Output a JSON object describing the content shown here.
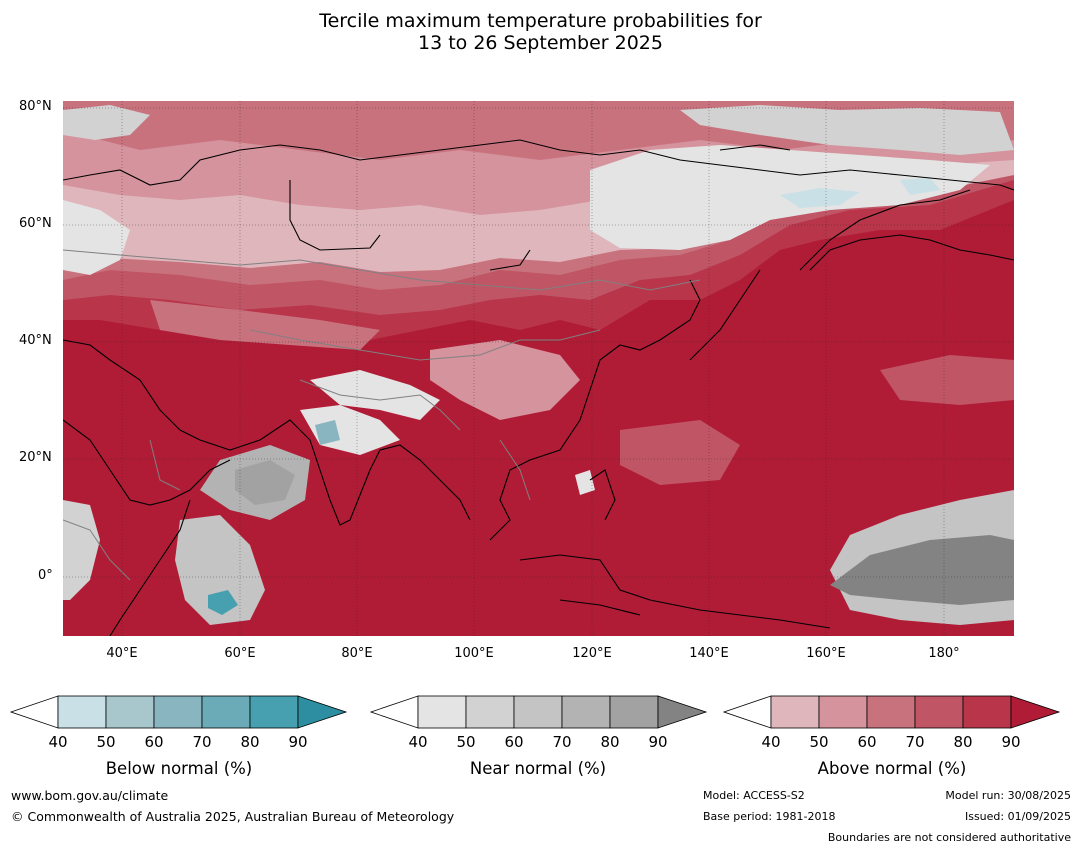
{
  "title_line1": "Tercile maximum temperature probabilities for",
  "title_line2": "13 to 26 September 2025",
  "map": {
    "projection": "equirectangular",
    "lon_range": [
      30,
      192
    ],
    "lat_range": [
      -10,
      81
    ],
    "lat_labels": [
      "80°N",
      "60°N",
      "40°N",
      "20°N",
      "0°"
    ],
    "lon_labels": [
      "40°E",
      "60°E",
      "80°E",
      "100°E",
      "120°E",
      "140°E",
      "160°E",
      "180°"
    ],
    "dominant_category": "Above normal",
    "colors": {
      "land_outline": "#000000",
      "borders": "#808080",
      "grid": "#333333"
    }
  },
  "legends": [
    {
      "name": "Below normal (%)",
      "ticks": [
        "40",
        "50",
        "60",
        "70",
        "80",
        "90"
      ],
      "colors": [
        "#ffffff",
        "#c9e0e7",
        "#a7c7cd",
        "#88b5bf",
        "#6babb7",
        "#46a0b0",
        "#2e8ea1"
      ]
    },
    {
      "name": "Near normal (%)",
      "ticks": [
        "40",
        "50",
        "60",
        "70",
        "80",
        "90"
      ],
      "colors": [
        "#ffffff",
        "#e4e4e4",
        "#d2d2d2",
        "#c4c4c4",
        "#b3b3b3",
        "#a2a2a2",
        "#838383"
      ]
    },
    {
      "name": "Above normal (%)",
      "ticks": [
        "40",
        "50",
        "60",
        "70",
        "80",
        "90"
      ],
      "colors": [
        "#ffffff",
        "#e0b6bd",
        "#d4939d",
        "#c8727e",
        "#c05565",
        "#b8354a",
        "#b01c36"
      ]
    }
  ],
  "footer": {
    "website": "www.bom.gov.au/climate",
    "copyright": "© Commonwealth of Australia 2025, Australian Bureau of Meteorology",
    "model": "Model: ACCESS-S2",
    "base_period": "Base period: 1981-2018",
    "model_run": "Model run: 30/08/2025",
    "issued": "Issued: 01/09/2025",
    "disclaimer": "Boundaries are not considered authoritative"
  }
}
